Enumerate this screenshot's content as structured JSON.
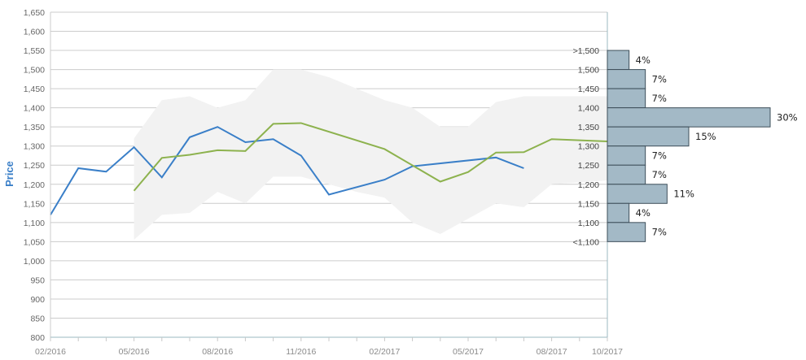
{
  "chart_data": {
    "type": "line",
    "ylabel": "Price",
    "ylim": [
      800,
      1650
    ],
    "ytick_step": 50,
    "ytick_labels": [
      "800",
      "850",
      "900",
      "950",
      "1,000",
      "1,050",
      "1,100",
      "1,150",
      "1,200",
      "1,250",
      "1,300",
      "1,350",
      "1,400",
      "1,450",
      "1,500",
      "1,550",
      "1,600",
      "1,650"
    ],
    "x_domain": [
      "2016-02",
      "2017-10"
    ],
    "xtick_labels": [
      "02/2016",
      "05/2016",
      "08/2016",
      "11/2016",
      "02/2017",
      "05/2017",
      "08/2017",
      "10/2017"
    ],
    "grid": true,
    "colors": {
      "series_blue": "#3a7fc8",
      "series_green": "#8db24e",
      "band": "#f2f2f2",
      "hist_fill": "#a3b9c6",
      "hist_stroke": "#3e4f5a",
      "grid": "#cccccc",
      "axis": "#9bb8c2",
      "ylabel": "#3a7fc8"
    },
    "band": {
      "x": [
        "2016-05",
        "2016-06",
        "2016-07",
        "2016-08",
        "2016-09",
        "2016-10",
        "2016-11",
        "2016-12",
        "2017-01",
        "2017-02",
        "2017-03",
        "2017-04",
        "2017-05",
        "2017-06",
        "2017-07",
        "2017-08",
        "2017-09",
        "2017-10"
      ],
      "upper": [
        1320,
        1420,
        1430,
        1400,
        1420,
        1500,
        1500,
        1480,
        1450,
        1420,
        1400,
        1350,
        1350,
        1415,
        1430,
        1430,
        1430,
        1430
      ],
      "lower": [
        1055,
        1120,
        1125,
        1180,
        1150,
        1220,
        1220,
        1200,
        1180,
        1165,
        1100,
        1070,
        1110,
        1150,
        1140,
        1200,
        1205,
        1210
      ]
    },
    "series": [
      {
        "color_key": "series_blue",
        "x": [
          "2016-02",
          "2016-03",
          "2016-04",
          "2016-05",
          "2016-06",
          "2016-07",
          "2016-08",
          "2016-09",
          "2016-10",
          "2016-11",
          "2016-12",
          "2017-02",
          "2017-03",
          "2017-06",
          "2017-07"
        ],
        "values": [
          1120,
          1242,
          1233,
          1297,
          1218,
          1323,
          1350,
          1310,
          1318,
          1275,
          1173,
          1212,
          1247,
          1270,
          1242
        ]
      },
      {
        "color_key": "series_green",
        "x": [
          "2016-05",
          "2016-06",
          "2016-07",
          "2016-08",
          "2016-09",
          "2016-10",
          "2016-11",
          "2017-02",
          "2017-04",
          "2017-05",
          "2017-06",
          "2017-07",
          "2017-08",
          "2017-10"
        ],
        "values": [
          1183,
          1269,
          1277,
          1289,
          1287,
          1358,
          1360,
          1292,
          1207,
          1232,
          1283,
          1284,
          1318,
          1312
        ]
      }
    ],
    "histogram": {
      "bins": [
        {
          "label": ">1,500",
          "lo": 1500,
          "hi": 1550,
          "value": 4,
          "pct": "4%"
        },
        {
          "label": "1,500",
          "lo": 1450,
          "hi": 1500,
          "value": 7,
          "pct": "7%"
        },
        {
          "label": "1,450",
          "lo": 1400,
          "hi": 1450,
          "value": 7,
          "pct": "7%"
        },
        {
          "label": "1,400",
          "lo": 1350,
          "hi": 1400,
          "value": 30,
          "pct": "30%"
        },
        {
          "label": "1,350",
          "lo": 1300,
          "hi": 1350,
          "value": 15,
          "pct": "15%"
        },
        {
          "label": "1,300",
          "lo": 1250,
          "hi": 1300,
          "value": 7,
          "pct": "7%"
        },
        {
          "label": "1,250",
          "lo": 1200,
          "hi": 1250,
          "value": 7,
          "pct": "7%"
        },
        {
          "label": "1,200",
          "lo": 1150,
          "hi": 1200,
          "value": 11,
          "pct": "11%"
        },
        {
          "label": "1,150",
          "lo": 1100,
          "hi": 1150,
          "value": 4,
          "pct": "4%"
        },
        {
          "label": "1,100",
          "lo": 1050,
          "hi": 1100,
          "value": 7,
          "pct": "7%"
        },
        {
          "label": "<1,100",
          "lo": 1050,
          "hi": 1050,
          "value": 0,
          "pct": ""
        }
      ]
    }
  }
}
